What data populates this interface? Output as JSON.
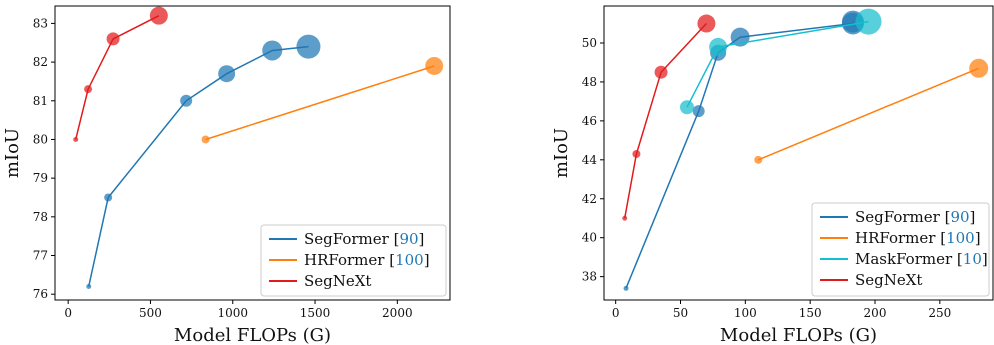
{
  "chart_data": [
    {
      "type": "scatter",
      "xlabel": "Model FLOPs (G)",
      "ylabel": "mIoU",
      "xlim": [
        -80,
        2320
      ],
      "ylim": [
        75.85,
        83.45
      ],
      "xticks": [
        0,
        500,
        1000,
        1500,
        2000
      ],
      "yticks": [
        76,
        77,
        78,
        79,
        80,
        81,
        82,
        83
      ],
      "legend_position": "lower right",
      "grid": false,
      "series": [
        {
          "name": "SegFormer",
          "ref": "90",
          "color": "#1f77b4",
          "points": [
            {
              "x": 125,
              "y": 76.2,
              "size": 2.5
            },
            {
              "x": 243,
              "y": 78.5,
              "size": 4
            },
            {
              "x": 717,
              "y": 81.0,
              "size": 6
            },
            {
              "x": 963,
              "y": 81.7,
              "size": 8.5
            },
            {
              "x": 1240,
              "y": 82.3,
              "size": 10
            },
            {
              "x": 1460,
              "y": 82.4,
              "size": 12
            }
          ]
        },
        {
          "name": "HRFormer",
          "ref": "100",
          "color": "#ff7f0e",
          "points": [
            {
              "x": 835,
              "y": 80.0,
              "size": 4
            },
            {
              "x": 2224,
              "y": 81.9,
              "size": 9
            }
          ]
        },
        {
          "name": "SegNeXt",
          "ref": "",
          "color": "#e31a1c",
          "points": [
            {
              "x": 46,
              "y": 80.0,
              "size": 2.5
            },
            {
              "x": 121,
              "y": 81.3,
              "size": 4
            },
            {
              "x": 273,
              "y": 82.6,
              "size": 6.5
            },
            {
              "x": 551,
              "y": 83.2,
              "size": 9
            }
          ]
        }
      ]
    },
    {
      "type": "scatter",
      "xlabel": "Model FLOPs (G)",
      "ylabel": "mIoU",
      "xlim": [
        -9,
        291
      ],
      "ylim": [
        36.8,
        51.9
      ],
      "xticks": [
        0,
        50,
        100,
        150,
        200,
        250
      ],
      "yticks": [
        38,
        40,
        42,
        44,
        46,
        48,
        50
      ],
      "legend_position": "lower right",
      "grid": false,
      "series": [
        {
          "name": "SegFormer",
          "ref": "90",
          "color": "#1f77b4",
          "points": [
            {
              "x": 8,
              "y": 37.4,
              "size": 2.5
            },
            {
              "x": 64,
              "y": 46.5,
              "size": 6
            },
            {
              "x": 79,
              "y": 49.5,
              "size": 8
            },
            {
              "x": 96,
              "y": 50.3,
              "size": 9.5
            },
            {
              "x": 183,
              "y": 51.0,
              "size": 11
            },
            {
              "x": 183,
              "y": 51.1,
              "size": 11
            }
          ]
        },
        {
          "name": "HRFormer",
          "ref": "100",
          "color": "#ff7f0e",
          "points": [
            {
              "x": 110,
              "y": 44.0,
              "size": 4
            },
            {
              "x": 280,
              "y": 48.7,
              "size": 9.5
            }
          ]
        },
        {
          "name": "MaskFormer",
          "ref": "10",
          "color": "#17becf",
          "points": [
            {
              "x": 55,
              "y": 46.7,
              "size": 7
            },
            {
              "x": 79,
              "y": 49.8,
              "size": 9
            },
            {
              "x": 195,
              "y": 51.1,
              "size": 13
            }
          ]
        },
        {
          "name": "SegNeXt",
          "ref": "",
          "color": "#e31a1c",
          "points": [
            {
              "x": 7,
              "y": 41.0,
              "size": 2.5
            },
            {
              "x": 16,
              "y": 44.3,
              "size": 4
            },
            {
              "x": 35,
              "y": 48.5,
              "size": 6.5
            },
            {
              "x": 70,
              "y": 51.0,
              "size": 9
            }
          ]
        }
      ]
    }
  ]
}
